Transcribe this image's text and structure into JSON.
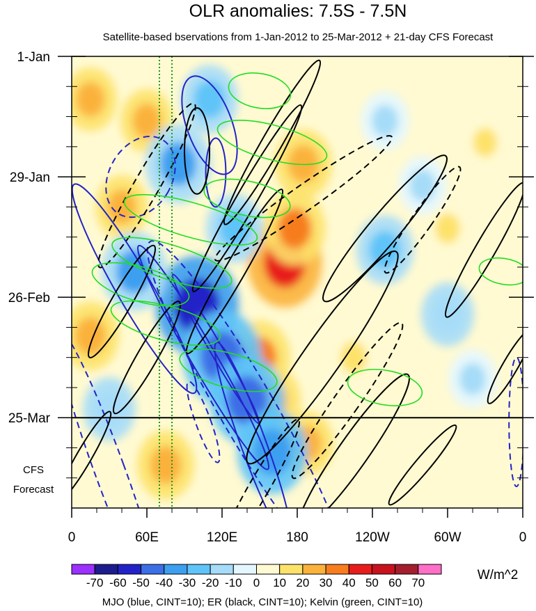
{
  "chart_data": {
    "type": "heatmap",
    "title": "OLR anomalies: 7.5S - 7.5N",
    "subtitle": "Satellite-based bservations from 1-Jan-2012 to 25-Mar-2012 + 21-day CFS Forecast",
    "x_tick_labels": [
      "0",
      "60E",
      "120E",
      "180",
      "120W",
      "60W",
      "0"
    ],
    "x_ticks_deg_east": [
      0,
      60,
      120,
      180,
      240,
      300,
      360
    ],
    "y_tick_labels": [
      "1-Jan",
      "29-Jan",
      "26-Feb",
      "25-Mar"
    ],
    "y_ticks_day": [
      0,
      28,
      56,
      84
    ],
    "y_range_days": [
      0,
      105
    ],
    "forecast_label_lines": [
      "CFS",
      "Forecast"
    ],
    "colorbar": {
      "labels": [
        "-70",
        "-60",
        "-50",
        "-40",
        "-30",
        "-20",
        "-10",
        "0",
        "10",
        "20",
        "30",
        "40",
        "50",
        "60",
        "70"
      ],
      "levels": [
        -70,
        -60,
        -50,
        -40,
        -30,
        -20,
        -10,
        0,
        10,
        20,
        30,
        40,
        50,
        60,
        70
      ],
      "colors": [
        "#9b30ff",
        "#1c1c8e",
        "#2222c8",
        "#3c6ee6",
        "#3c9ff0",
        "#5fc4f8",
        "#a6dcf8",
        "#e4f7ff",
        "#fffad2",
        "#fde26a",
        "#fbb23c",
        "#f77d1e",
        "#e81c1c",
        "#c8121e",
        "#a51e2d",
        "#ff6ec7"
      ],
      "units": "W/m^2"
    },
    "footer": "MJO (blue, CINT=10); ER (black, CINT=10); Kelvin (green, CINT=10)",
    "overlay_colors": {
      "mjo": "#2323c8",
      "er": "#000000",
      "kelvin": "#22dd22",
      "reference": "#1a9a1a"
    },
    "reference_lines_deg_east": [
      70,
      80
    ],
    "field_features": [
      {
        "lon": 170,
        "day": 48,
        "value": 45
      },
      {
        "lon": 178,
        "day": 40,
        "value": 30
      },
      {
        "lon": 150,
        "day": 70,
        "value": 30
      },
      {
        "lon": 160,
        "day": 80,
        "value": 25
      },
      {
        "lon": 185,
        "day": 25,
        "value": 25
      },
      {
        "lon": 188,
        "day": 90,
        "value": 20
      },
      {
        "lon": 75,
        "day": 95,
        "value": 25
      },
      {
        "lon": 15,
        "day": 65,
        "value": 25
      },
      {
        "lon": 40,
        "day": 35,
        "value": 20
      },
      {
        "lon": 15,
        "day": 10,
        "value": 20
      },
      {
        "lon": 60,
        "day": 15,
        "value": 20
      },
      {
        "lon": 225,
        "day": 70,
        "value": 15
      },
      {
        "lon": 300,
        "day": 40,
        "value": 12
      },
      {
        "lon": 330,
        "day": 20,
        "value": 10
      },
      {
        "lon": 100,
        "day": 58,
        "value": -55
      },
      {
        "lon": 120,
        "day": 70,
        "value": -50
      },
      {
        "lon": 140,
        "day": 80,
        "value": -45
      },
      {
        "lon": 160,
        "day": 92,
        "value": -40
      },
      {
        "lon": 50,
        "day": 50,
        "value": -35
      },
      {
        "lon": 85,
        "day": 25,
        "value": -35
      },
      {
        "lon": 110,
        "day": 10,
        "value": -25
      },
      {
        "lon": 130,
        "day": 40,
        "value": -25
      },
      {
        "lon": 250,
        "day": 45,
        "value": -25
      },
      {
        "lon": 300,
        "day": 60,
        "value": -20
      },
      {
        "lon": 250,
        "day": 15,
        "value": -15
      },
      {
        "lon": 320,
        "day": 75,
        "value": -15
      },
      {
        "lon": 30,
        "day": 82,
        "value": -20
      },
      {
        "lon": 280,
        "day": 30,
        "value": -15
      }
    ],
    "mjo_contours": [
      {
        "lon": 105,
        "day": 70,
        "rx": 10,
        "ry": 30,
        "angle": -30,
        "dash": false
      },
      {
        "lon": 115,
        "day": 68,
        "rx": 5,
        "ry": 20,
        "angle": -30,
        "dash": false
      },
      {
        "lon": 145,
        "day": 90,
        "rx": 10,
        "ry": 25,
        "angle": -20,
        "dash": false
      },
      {
        "lon": 140,
        "day": 82,
        "rx": 22,
        "ry": 45,
        "angle": -30,
        "dash": true
      },
      {
        "lon": 50,
        "day": 54,
        "rx": 14,
        "ry": 28,
        "angle": -30,
        "dash": false
      },
      {
        "lon": 110,
        "day": 16,
        "rx": 18,
        "ry": 12,
        "angle": -20,
        "dash": false
      },
      {
        "lon": 115,
        "day": 27,
        "rx": 8,
        "ry": 8,
        "angle": 0,
        "dash": false
      },
      {
        "lon": 55,
        "day": 28,
        "rx": 25,
        "ry": 10,
        "angle": 30,
        "dash": true
      },
      {
        "lon": 30,
        "day": 96,
        "rx": 12,
        "ry": 35,
        "angle": -20,
        "dash": true
      },
      {
        "lon": 355,
        "day": 85,
        "rx": 6,
        "ry": 15,
        "angle": 0,
        "dash": true
      },
      {
        "lon": 105,
        "day": 85,
        "rx": 6,
        "ry": 10,
        "angle": -20,
        "dash": true
      }
    ],
    "er_contours": [
      {
        "lon": 140,
        "day": 33,
        "rx": 8,
        "ry": 25,
        "angle": 30,
        "dash": false
      },
      {
        "lon": 160,
        "day": 20,
        "rx": 8,
        "ry": 22,
        "angle": 30,
        "dash": false
      },
      {
        "lon": 130,
        "day": 50,
        "rx": 8,
        "ry": 22,
        "angle": 30,
        "dash": false
      },
      {
        "lon": 185,
        "day": 33,
        "rx": 10,
        "ry": 25,
        "angle": 55,
        "dash": true
      },
      {
        "lon": 250,
        "day": 40,
        "rx": 12,
        "ry": 22,
        "angle": 40,
        "dash": false
      },
      {
        "lon": 200,
        "day": 70,
        "rx": 15,
        "ry": 30,
        "angle": 35,
        "dash": false
      },
      {
        "lon": 225,
        "day": 92,
        "rx": 12,
        "ry": 22,
        "angle": 35,
        "dash": false
      },
      {
        "lon": 280,
        "day": 38,
        "rx": 8,
        "ry": 15,
        "angle": 35,
        "dash": true
      },
      {
        "lon": 60,
        "day": 70,
        "rx": 8,
        "ry": 15,
        "angle": 30,
        "dash": false
      },
      {
        "lon": 40,
        "day": 57,
        "rx": 8,
        "ry": 15,
        "angle": 30,
        "dash": false
      },
      {
        "lon": 10,
        "day": 93,
        "rx": 6,
        "ry": 12,
        "angle": 30,
        "dash": false
      },
      {
        "lon": 280,
        "day": 95,
        "rx": 6,
        "ry": 12,
        "angle": 40,
        "dash": false
      },
      {
        "lon": 60,
        "day": 30,
        "rx": 10,
        "ry": 22,
        "angle": 30,
        "dash": true
      },
      {
        "lon": 100,
        "day": 22,
        "rx": 10,
        "ry": 10,
        "angle": 0,
        "dash": false
      },
      {
        "lon": 330,
        "day": 45,
        "rx": 8,
        "ry": 18,
        "angle": 30,
        "dash": false
      },
      {
        "lon": 350,
        "day": 72,
        "rx": 6,
        "ry": 10,
        "angle": 30,
        "dash": false
      },
      {
        "lon": 220,
        "day": 80,
        "rx": 10,
        "ry": 22,
        "angle": 35,
        "dash": true
      },
      {
        "lon": 150,
        "day": 100,
        "rx": 8,
        "ry": 18,
        "angle": 30,
        "dash": true
      }
    ],
    "kelvin_contours": [
      {
        "lon": 95,
        "day": 38,
        "rx": 55,
        "ry": 4,
        "angle": 16,
        "dash": false
      },
      {
        "lon": 80,
        "day": 48,
        "rx": 50,
        "ry": 4,
        "angle": 18,
        "dash": false
      },
      {
        "lon": 55,
        "day": 53,
        "rx": 40,
        "ry": 4,
        "angle": 16,
        "dash": false
      },
      {
        "lon": 75,
        "day": 62,
        "rx": 45,
        "ry": 4,
        "angle": 15,
        "dash": false
      },
      {
        "lon": 125,
        "day": 73,
        "rx": 40,
        "ry": 4,
        "angle": 15,
        "dash": false
      },
      {
        "lon": 160,
        "day": 20,
        "rx": 45,
        "ry": 4,
        "angle": 15,
        "dash": false
      },
      {
        "lon": 150,
        "day": 8,
        "rx": 25,
        "ry": 4,
        "angle": 10,
        "dash": false
      },
      {
        "lon": 140,
        "day": 33,
        "rx": 35,
        "ry": 4,
        "angle": 12,
        "dash": false
      },
      {
        "lon": 250,
        "day": 77,
        "rx": 30,
        "ry": 4,
        "angle": 10,
        "dash": false
      },
      {
        "lon": 345,
        "day": 50,
        "rx": 20,
        "ry": 3,
        "angle": 10,
        "dash": false
      }
    ]
  }
}
